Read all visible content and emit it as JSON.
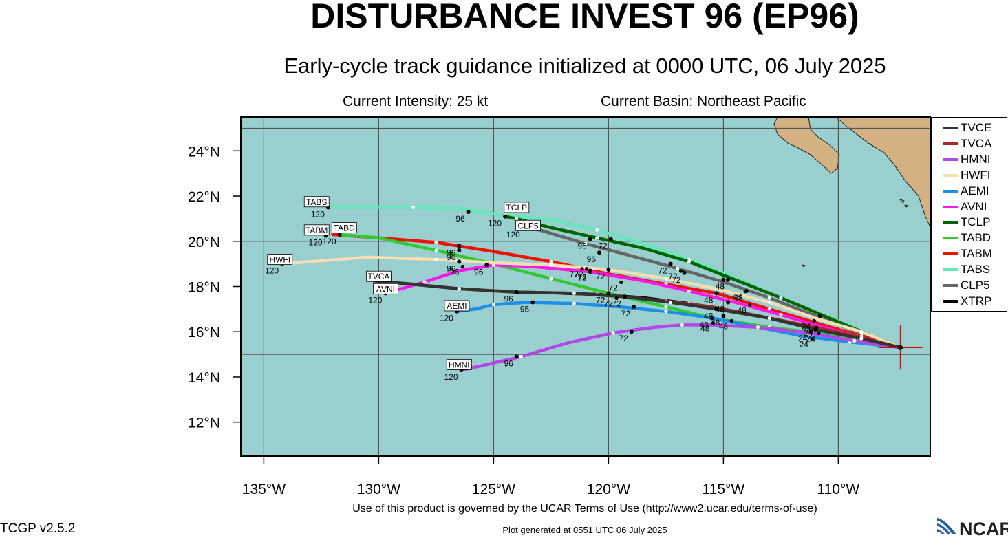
{
  "header": {
    "title": "DISTURBANCE INVEST 96 (EP96)",
    "subtitle": "Early-cycle track guidance initialized at 0000 UTC, 06 July 2025",
    "current_intensity": "Current Intensity: 25 kt",
    "current_basin": "Current Basin: Northeast Pacific"
  },
  "footer": {
    "terms": "Use of this product is governed by the UCAR Terms of Use (http://www2.ucar.edu/terms-of-use)",
    "version": "TCGP v2.5.2",
    "generated": "Plot generated at 0551 UTC   06 July 2025",
    "logo_text": "NCAR"
  },
  "map": {
    "lon_range": [
      -136,
      -106
    ],
    "lat_range": [
      10.5,
      25.5
    ],
    "ocean_color": "#99cfcf",
    "land_color": "#d4b183",
    "grid_color": "#555555",
    "lat_ticks": [
      {
        "value": 12,
        "label": "12°N"
      },
      {
        "value": 14,
        "label": "14°N"
      },
      {
        "value": 16,
        "label": "16°N"
      },
      {
        "value": 18,
        "label": "18°N"
      },
      {
        "value": 20,
        "label": "20°N"
      },
      {
        "value": 22,
        "label": "22°N"
      },
      {
        "value": 24,
        "label": "24°N"
      }
    ],
    "lon_ticks": [
      {
        "value": -135,
        "label": "135°W"
      },
      {
        "value": -130,
        "label": "130°W"
      },
      {
        "value": -125,
        "label": "125°W"
      },
      {
        "value": -120,
        "label": "120°W"
      },
      {
        "value": -115,
        "label": "115°W"
      },
      {
        "value": -110,
        "label": "110°W"
      }
    ],
    "gridlines": {
      "lat": [
        15,
        20,
        25
      ],
      "lon": [
        -135,
        -130,
        -125,
        -120,
        -115,
        -110
      ]
    },
    "storm_position": {
      "lat": 15.3,
      "lon": -107.3
    }
  },
  "chart_data": {
    "type": "track-map",
    "series": [
      {
        "name": "TVCE",
        "color": "#333333",
        "points": [
          [
            -107.3,
            15.3
          ],
          [
            -109.0,
            15.7
          ],
          [
            -111.0,
            16.1
          ],
          [
            -113.0,
            16.6
          ],
          [
            -115.3,
            17.0
          ],
          [
            -117.3,
            17.3
          ],
          [
            -119.3,
            17.55
          ],
          [
            -121.5,
            17.7
          ],
          [
            -124.0,
            17.75
          ],
          [
            -126.5,
            17.9
          ],
          [
            -128.5,
            18.1
          ],
          [
            -130.2,
            18.25
          ]
        ],
        "markers": [
          {
            "lon": -111.0,
            "lat": 16.1,
            "text": ""
          },
          {
            "lon": -115.3,
            "lat": 17.0,
            "text": "48"
          },
          {
            "lon": -119.3,
            "lat": 17.55,
            "text": "72"
          },
          {
            "lon": -124.0,
            "lat": 17.75,
            "text": "96"
          }
        ]
      },
      {
        "name": "TVCA",
        "color": "#a52a2a",
        "points": [
          [
            -107.3,
            15.3
          ],
          [
            -109.0,
            15.75
          ],
          [
            -111.0,
            16.2
          ],
          [
            -113.0,
            16.6
          ],
          [
            -115.5,
            17.1
          ],
          [
            -117.5,
            17.35
          ],
          [
            -119.3,
            17.55
          ],
          [
            -121.5,
            17.7
          ],
          [
            -124.0,
            17.75
          ],
          [
            -126.5,
            17.9
          ],
          [
            -128.5,
            18.1
          ],
          [
            -130.2,
            18.25
          ]
        ],
        "markers": []
      },
      {
        "name": "HMNI",
        "color": "#b347e6",
        "points": [
          [
            -107.3,
            15.3
          ],
          [
            -109.3,
            15.6
          ],
          [
            -111.3,
            15.95
          ],
          [
            -113.5,
            16.2
          ],
          [
            -115.5,
            16.3
          ],
          [
            -116.8,
            16.3
          ],
          [
            -118.0,
            16.2
          ],
          [
            -119.8,
            15.95
          ],
          [
            -121.8,
            15.5
          ],
          [
            -123.8,
            14.9
          ],
          [
            -125.5,
            14.5
          ],
          [
            -126.4,
            14.3
          ]
        ],
        "markers": [
          {
            "lon": -119.0,
            "lat": 16.0,
            "text": "72"
          },
          {
            "lon": -124.0,
            "lat": 14.9,
            "text": "96"
          },
          {
            "lon": -126.4,
            "lat": 14.3,
            "text": "120"
          }
        ]
      },
      {
        "name": "HWFI",
        "color": "#f5deb3",
        "points": [
          [
            -107.3,
            15.3
          ],
          [
            -109.0,
            16.0
          ],
          [
            -111.0,
            16.6
          ],
          [
            -113.0,
            17.3
          ],
          [
            -115.3,
            17.9
          ],
          [
            -117.5,
            18.35
          ],
          [
            -120.0,
            18.75
          ],
          [
            -122.5,
            18.95
          ],
          [
            -125.0,
            19.05
          ],
          [
            -127.5,
            19.2
          ],
          [
            -130.5,
            19.3
          ],
          [
            -134.2,
            19.0
          ]
        ],
        "markers": [
          {
            "lon": -120.0,
            "lat": 18.75,
            "text": "72"
          },
          {
            "lon": -126.5,
            "lat": 19.1,
            "text": "96"
          },
          {
            "lon": -134.2,
            "lat": 19.0,
            "text": "120"
          }
        ]
      },
      {
        "name": "AEMI",
        "color": "#1e8fe6",
        "points": [
          [
            -107.3,
            15.3
          ],
          [
            -109.5,
            15.55
          ],
          [
            -111.5,
            15.8
          ],
          [
            -113.5,
            16.2
          ],
          [
            -115.5,
            16.6
          ],
          [
            -117.5,
            16.9
          ],
          [
            -119.5,
            17.1
          ],
          [
            -121.5,
            17.25
          ],
          [
            -123.5,
            17.3
          ],
          [
            -125.0,
            17.2
          ],
          [
            -125.8,
            17.0
          ],
          [
            -126.6,
            16.9
          ]
        ],
        "markers": [
          {
            "lon": -118.9,
            "lat": 17.1,
            "text": "72"
          },
          {
            "lon": -123.3,
            "lat": 17.3,
            "text": "95"
          },
          {
            "lon": -126.6,
            "lat": 16.9,
            "text": "120"
          }
        ]
      },
      {
        "name": "AVNI",
        "color": "#ff19e6",
        "points": [
          [
            -107.3,
            15.3
          ],
          [
            -109.2,
            15.8
          ],
          [
            -111.0,
            16.3
          ],
          [
            -112.5,
            16.75
          ],
          [
            -114.5,
            17.3
          ],
          [
            -116.5,
            17.8
          ],
          [
            -118.5,
            18.25
          ],
          [
            -120.8,
            18.65
          ],
          [
            -123.5,
            18.9
          ],
          [
            -125.0,
            18.95
          ],
          [
            -126.5,
            18.7
          ],
          [
            -128.0,
            18.2
          ],
          [
            -129.7,
            17.7
          ]
        ],
        "markers": [
          {
            "lon": -114.8,
            "lat": 17.3,
            "text": "48"
          },
          {
            "lon": -120.8,
            "lat": 18.65,
            "text": "72"
          },
          {
            "lon": -125.3,
            "lat": 18.95,
            "text": "96"
          },
          {
            "lon": -129.7,
            "lat": 17.7,
            "text": "120"
          }
        ]
      },
      {
        "name": "TCLP",
        "color": "#006400",
        "points": [
          [
            -107.3,
            15.3
          ],
          [
            -108.5,
            15.8
          ],
          [
            -110.5,
            16.65
          ],
          [
            -112.5,
            17.5
          ],
          [
            -114.5,
            18.3
          ],
          [
            -116.5,
            19.1
          ],
          [
            -118.5,
            19.7
          ],
          [
            -120.5,
            20.15
          ],
          [
            -122.5,
            20.6
          ],
          [
            -124.0,
            21.0
          ],
          [
            -124.5,
            21.1
          ]
        ],
        "markers": [
          {
            "lon": -110.8,
            "lat": 16.7,
            "text": ""
          },
          {
            "lon": -114.8,
            "lat": 18.3,
            "text": "48"
          },
          {
            "lon": -117.3,
            "lat": 19.0,
            "text": "72"
          },
          {
            "lon": -120.8,
            "lat": 20.1,
            "text": "96"
          },
          {
            "lon": -124.5,
            "lat": 21.1,
            "text": "120"
          }
        ]
      },
      {
        "name": "TABD",
        "color": "#32c832",
        "points": [
          [
            -107.3,
            15.3
          ],
          [
            -109.0,
            15.65
          ],
          [
            -111.0,
            15.95
          ],
          [
            -113.0,
            16.2
          ],
          [
            -115.5,
            16.6
          ],
          [
            -117.5,
            17.1
          ],
          [
            -120.0,
            17.7
          ],
          [
            -122.5,
            18.35
          ],
          [
            -125.0,
            19.0
          ],
          [
            -127.5,
            19.6
          ],
          [
            -130.0,
            20.15
          ],
          [
            -131.7,
            20.3
          ]
        ],
        "markers": [
          {
            "lon": -115.5,
            "lat": 16.6,
            "text": "48"
          },
          {
            "lon": -120.0,
            "lat": 17.7,
            "text": "72"
          },
          {
            "lon": -126.5,
            "lat": 19.6,
            "text": "96"
          },
          {
            "lon": -131.7,
            "lat": 20.3,
            "text": "120"
          }
        ]
      },
      {
        "name": "TABM",
        "color": "#ee1100",
        "points": [
          [
            -107.3,
            15.3
          ],
          [
            -109.0,
            15.8
          ],
          [
            -111.0,
            16.4
          ],
          [
            -113.0,
            17.0
          ],
          [
            -115.3,
            17.7
          ],
          [
            -117.5,
            18.1
          ],
          [
            -120.0,
            18.55
          ],
          [
            -122.5,
            19.1
          ],
          [
            -125.0,
            19.55
          ],
          [
            -127.5,
            19.95
          ],
          [
            -130.0,
            20.15
          ],
          [
            -132.0,
            20.3
          ]
        ],
        "markers": [
          {
            "lon": -115.3,
            "lat": 17.7,
            "text": "48"
          },
          {
            "lon": -120.8,
            "lat": 18.7,
            "text": "72"
          },
          {
            "lon": -126.5,
            "lat": 19.8,
            "text": "96"
          },
          {
            "lon": -132.3,
            "lat": 20.25,
            "text": "120"
          }
        ]
      },
      {
        "name": "TABS",
        "color": "#66e6bb",
        "points": [
          [
            -107.3,
            15.3
          ],
          [
            -108.5,
            15.8
          ],
          [
            -110.3,
            16.6
          ],
          [
            -112.5,
            17.5
          ],
          [
            -114.5,
            18.4
          ],
          [
            -116.5,
            19.2
          ],
          [
            -118.5,
            19.9
          ],
          [
            -120.5,
            20.5
          ],
          [
            -122.5,
            20.95
          ],
          [
            -124.5,
            21.15
          ],
          [
            -126.5,
            21.45
          ],
          [
            -128.5,
            21.5
          ],
          [
            -130.5,
            21.5
          ],
          [
            -132.2,
            21.5
          ]
        ],
        "markers": [
          {
            "lon": -115.0,
            "lat": 18.3,
            "text": ""
          },
          {
            "lon": -119.9,
            "lat": 20.1,
            "text": "72"
          },
          {
            "lon": -126.1,
            "lat": 21.3,
            "text": "96"
          },
          {
            "lon": -132.2,
            "lat": 21.5,
            "text": "120"
          }
        ]
      },
      {
        "name": "CLP5",
        "color": "#666666",
        "points": [
          [
            -107.3,
            15.3
          ],
          [
            -109.0,
            15.9
          ],
          [
            -111.0,
            16.7
          ],
          [
            -113.0,
            17.5
          ],
          [
            -115.0,
            18.2
          ],
          [
            -117.0,
            18.8
          ],
          [
            -119.0,
            19.35
          ],
          [
            -121.0,
            19.9
          ],
          [
            -123.0,
            20.5
          ],
          [
            -123.7,
            20.6
          ]
        ],
        "markers": [
          {
            "lon": -114.0,
            "lat": 17.8,
            "text": "48"
          },
          {
            "lon": -116.7,
            "lat": 18.6,
            "text": "72"
          },
          {
            "lon": -120.4,
            "lat": 19.5,
            "text": "96"
          },
          {
            "lon": -123.7,
            "lat": 20.6,
            "text": "120"
          }
        ]
      },
      {
        "name": "XTRP",
        "color": "#000000",
        "points": [
          [
            -107.3,
            15.3
          ],
          [
            -109.0,
            15.7
          ],
          [
            -110.7,
            16.1
          ],
          [
            -112.5,
            16.5
          ],
          [
            -114.5,
            16.9
          ],
          [
            -116.5,
            17.25
          ],
          [
            -118.5,
            17.5
          ],
          [
            -120.5,
            17.65
          ],
          [
            -122.0,
            17.7
          ]
        ],
        "markers": [
          {
            "lon": -111.2,
            "lat": 16.0,
            "text": "24"
          },
          {
            "lon": -115.0,
            "lat": 16.7,
            "text": "48"
          }
        ]
      }
    ],
    "extra_labels": [
      {
        "lon": -111.3,
        "lat": 15.5,
        "text": "24"
      },
      {
        "lon": -111.0,
        "lat": 15.75,
        "text": "24"
      },
      {
        "lon": -111.1,
        "lat": 16.0,
        "text": "24"
      },
      {
        "lon": -111.2,
        "lat": 16.3,
        "text": "24"
      },
      {
        "lon": -115.6,
        "lat": 16.2,
        "text": "48"
      },
      {
        "lon": -114.8,
        "lat": 16.3,
        "text": "48"
      },
      {
        "lon": -114.0,
        "lat": 17.0,
        "text": "48"
      },
      {
        "lon": -114.2,
        "lat": 17.6,
        "text": "48"
      },
      {
        "lon": -121.3,
        "lat": 18.6,
        "text": "72"
      },
      {
        "lon": -121.1,
        "lat": 18.6,
        "text": "72"
      },
      {
        "lon": -117.0,
        "lat": 18.5,
        "text": "72"
      },
      {
        "lon": -119.6,
        "lat": 18.0,
        "text": "72"
      },
      {
        "lon": -119.8,
        "lat": 17.3,
        "text": "72"
      },
      {
        "lon": -126.5,
        "lat": 18.7,
        "text": "96"
      }
    ],
    "boxed_labels": [
      {
        "name": "TABS",
        "lon": -132.7,
        "lat": 21.75
      },
      {
        "name": "TCLP",
        "lon": -124.0,
        "lat": 21.5
      },
      {
        "name": "CLP5",
        "lon": -123.5,
        "lat": 20.7
      },
      {
        "name": "TABM",
        "lon": -132.7,
        "lat": 20.5
      },
      {
        "name": "TABD",
        "lon": -131.5,
        "lat": 20.6
      },
      {
        "name": "HWFI",
        "lon": -134.3,
        "lat": 19.2
      },
      {
        "name": "TVCA",
        "lon": -130.0,
        "lat": 18.45
      },
      {
        "name": "AVNI",
        "lon": -129.7,
        "lat": 17.9
      },
      {
        "name": "AEMI",
        "lon": -126.6,
        "lat": 17.15
      },
      {
        "name": "HMNI",
        "lon": -126.5,
        "lat": 14.55
      }
    ]
  },
  "legend": {
    "items": [
      {
        "name": "TVCE",
        "color": "#333333"
      },
      {
        "name": "TVCA",
        "color": "#a52a2a"
      },
      {
        "name": "HMNI",
        "color": "#b347e6"
      },
      {
        "name": "HWFI",
        "color": "#f5deb3"
      },
      {
        "name": "AEMI",
        "color": "#1e8fe6"
      },
      {
        "name": "AVNI",
        "color": "#ff19e6"
      },
      {
        "name": "TCLP",
        "color": "#006400"
      },
      {
        "name": "TABD",
        "color": "#32c832"
      },
      {
        "name": "TABM",
        "color": "#ee1100"
      },
      {
        "name": "TABS",
        "color": "#66e6bb"
      },
      {
        "name": "CLP5",
        "color": "#666666"
      },
      {
        "name": "XTRP",
        "color": "#000000"
      }
    ]
  }
}
